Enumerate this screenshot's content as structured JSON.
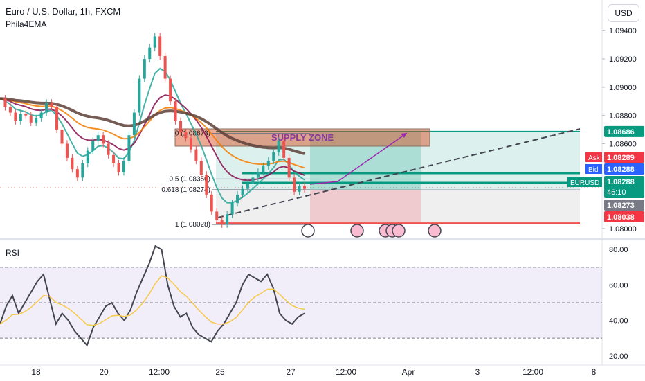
{
  "header": {
    "title": "Euro / U.S. Dollar, 1h, FXCM",
    "indicator": "Phila4EMA",
    "currency_button": "USD"
  },
  "rsi_panel": {
    "label": "RSI",
    "ticks": [
      "80.00",
      "60.00",
      "40.00",
      "20.00"
    ],
    "upper_band": 70,
    "lower_band": 30,
    "mid_band": 50
  },
  "price_axis": {
    "ticks": [
      "1.09400",
      "1.09200",
      "1.09000",
      "1.08800",
      "1.08600",
      "1.08000"
    ]
  },
  "price_labels": {
    "target": "1.08686",
    "ask_label": "Ask",
    "ask": "1.08289",
    "bid_label": "Bid",
    "bid": "1.08288",
    "symbol": "EURUSD",
    "last": "1.08288",
    "countdown": "46:10",
    "entry": "1.08273",
    "stop": "1.08038"
  },
  "time_axis": {
    "labels": [
      "18",
      "20",
      "12:00",
      "25",
      "27",
      "12:00",
      "Apr",
      "3",
      "12:00",
      "8"
    ]
  },
  "annotations": {
    "zone": "SUPPLY ZONE",
    "fib": [
      {
        "label": "0 (1.08673)",
        "level": 0
      },
      {
        "label": "0.5 (1.08350)",
        "level": 0.5
      },
      {
        "label": "0.618 (1.08274)",
        "level": 0.618
      },
      {
        "label": "1 (1.08028)",
        "level": 1
      }
    ]
  },
  "colors": {
    "up": "#26a69a",
    "down": "#ef5350",
    "target_bg": "#089981",
    "ask_bg": "#f23645",
    "bid_bg": "#2962ff",
    "symbol_bg": "#089981",
    "entry_bg": "#787b86",
    "stop_bg": "#f23645",
    "ema_teal": "#26a69a",
    "ema_orange": "#f57c00",
    "ema_maroon": "#880e4f",
    "ema_dark": "#5d4037",
    "rsi_line": "#434651",
    "rsi_ma": "#f7c948"
  },
  "chart_data": {
    "type": "candlestick",
    "symbol": "EURUSD",
    "timeframe": "1h",
    "price_range": [
      1.0796,
      1.0946
    ],
    "rsi_range": [
      16,
      84
    ],
    "key_levels": {
      "fib_0": 1.08673,
      "fib_0_5": 1.0835,
      "fib_0_618": 1.08274,
      "fib_1": 1.08028,
      "target": 1.08686,
      "entry": 1.08273,
      "stop": 1.08038,
      "last": 1.08288
    },
    "price_path": [
      1.0892,
      1.0886,
      1.0882,
      1.0876,
      1.0881,
      1.088,
      1.0875,
      1.0878,
      1.0882,
      1.0889,
      1.0886,
      1.087,
      1.086,
      1.085,
      1.0842,
      1.0836,
      1.0846,
      1.0855,
      1.0862,
      1.0866,
      1.086,
      1.0852,
      1.0846,
      1.084,
      1.0848,
      1.0866,
      1.0882,
      1.0906,
      1.092,
      1.0928,
      1.0936,
      1.0922,
      1.0906,
      1.089,
      1.0876,
      1.0868,
      1.0864,
      1.0856,
      1.0848,
      1.0838,
      1.0824,
      1.0812,
      1.0806,
      1.0803,
      1.081,
      1.0818,
      1.0824,
      1.0828,
      1.0832,
      1.0836,
      1.084,
      1.0844,
      1.0848,
      1.0854,
      1.0862,
      1.085,
      1.0836,
      1.0826,
      1.083,
      1.0828
    ],
    "rsi": [
      38,
      48,
      54,
      44,
      50,
      56,
      62,
      66,
      52,
      38,
      44,
      40,
      34,
      30,
      26,
      36,
      42,
      48,
      50,
      44,
      40,
      46,
      56,
      64,
      72,
      82,
      80,
      60,
      48,
      42,
      44,
      36,
      32,
      30,
      28,
      34,
      38,
      44,
      50,
      60,
      66,
      64,
      62,
      66,
      58,
      44,
      40,
      38,
      42,
      44
    ]
  }
}
